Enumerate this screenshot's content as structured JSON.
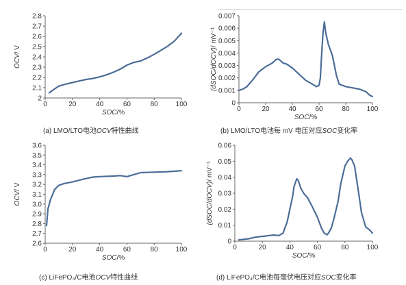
{
  "chart_data": [
    {
      "type": "line",
      "caption": {
        "prefix": "(a) LMO/LTO电池",
        "italic": "OCV",
        "suffix": "特性曲线"
      },
      "ylabel": {
        "italic": "OCV",
        "suffix": "/ V"
      },
      "xlabel": {
        "italic": "SOC",
        "suffix": "/%"
      },
      "xlim": [
        0,
        100
      ],
      "ylim": [
        2,
        2.8
      ],
      "x_ticks": [
        "0",
        "20",
        "40",
        "60",
        "80",
        "100"
      ],
      "y_ticks": [
        "2",
        "2.1",
        "2.2",
        "2.3",
        "2.4",
        "2.5",
        "2.6",
        "2.7",
        "2.8"
      ],
      "grid": false,
      "color": "#4a6d96",
      "x": [
        3,
        6,
        10,
        15,
        20,
        25,
        30,
        35,
        40,
        45,
        50,
        55,
        60,
        65,
        70,
        75,
        80,
        85,
        90,
        95,
        98,
        100
      ],
      "y": [
        2.05,
        2.08,
        2.115,
        2.135,
        2.15,
        2.165,
        2.18,
        2.19,
        2.205,
        2.225,
        2.25,
        2.28,
        2.32,
        2.345,
        2.36,
        2.39,
        2.425,
        2.465,
        2.505,
        2.555,
        2.6,
        2.63
      ]
    },
    {
      "type": "line",
      "caption": {
        "prefix": "(b) LMO/LTO电池每 mV 电压对应",
        "italic": "SOC",
        "suffix": "变化率"
      },
      "ylabel": {
        "italic": "(dSOC/dOCV)",
        "suffix": "/ mV⁻¹"
      },
      "xlabel": {
        "italic": "SOC",
        "suffix": "/%"
      },
      "xlim": [
        0,
        100
      ],
      "ylim": [
        0,
        0.007
      ],
      "x_ticks": [
        "0",
        "20",
        "40",
        "60",
        "80",
        "100"
      ],
      "y_ticks": [
        "0",
        "0.001",
        "0.002",
        "0.003",
        "0.004",
        "0.005",
        "0.006",
        "0.007"
      ],
      "grid": false,
      "color": "#4a6d96",
      "x": [
        0,
        3,
        6,
        10,
        15,
        20,
        25,
        28,
        30,
        33,
        36,
        40,
        45,
        50,
        55,
        58,
        60,
        61,
        62,
        63,
        64,
        65,
        67,
        70,
        73,
        75,
        80,
        85,
        90,
        95,
        98,
        100
      ],
      "y": [
        0.001,
        0.0011,
        0.0013,
        0.0018,
        0.0025,
        0.0029,
        0.0032,
        0.0035,
        0.0035,
        0.0032,
        0.0031,
        0.0028,
        0.0023,
        0.0018,
        0.0015,
        0.0013,
        0.0014,
        0.002,
        0.004,
        0.0057,
        0.0065,
        0.0056,
        0.0047,
        0.0038,
        0.0022,
        0.0015,
        0.0013,
        0.0012,
        0.0011,
        0.0009,
        0.0006,
        0.0005
      ]
    },
    {
      "type": "line",
      "caption": {
        "prefix": "(c) LiFePO₄/C电池",
        "italic": "OCV",
        "suffix": "特性曲线"
      },
      "ylabel": {
        "italic": "OCV",
        "suffix": "/ V"
      },
      "xlabel": {
        "italic": "SOC",
        "suffix": "/%"
      },
      "xlim": [
        0,
        100
      ],
      "ylim": [
        2.6,
        3.6
      ],
      "x_ticks": [
        "0",
        "20",
        "40",
        "60",
        "80",
        "100"
      ],
      "y_ticks": [
        "2.6",
        "2.7",
        "2.8",
        "2.9",
        "3.0",
        "3.1",
        "3.2",
        "3.3",
        "3.4",
        "3.5",
        "3.6"
      ],
      "grid": false,
      "color": "#4a6d96",
      "x": [
        1,
        2,
        4,
        7,
        10,
        14,
        20,
        30,
        35,
        40,
        50,
        55,
        60,
        65,
        70,
        80,
        90,
        100
      ],
      "y": [
        2.78,
        2.95,
        3.05,
        3.15,
        3.19,
        3.21,
        3.225,
        3.26,
        3.275,
        3.28,
        3.285,
        3.29,
        3.28,
        3.3,
        3.32,
        3.325,
        3.33,
        3.34
      ]
    },
    {
      "type": "line",
      "caption": {
        "prefix": "(d) LiFePO₄/C电池每毫伏电压对应",
        "italic": "SOC",
        "suffix": "变化率"
      },
      "ylabel": {
        "italic": "(dSOC/dOCV)",
        "suffix": "/ mV⁻¹"
      },
      "xlabel": {
        "italic": "SOC",
        "suffix": "/%"
      },
      "xlim": [
        0,
        100
      ],
      "ylim": [
        0,
        0.06
      ],
      "x_ticks": [
        "0",
        "20",
        "40",
        "60",
        "80",
        "100"
      ],
      "y_ticks": [
        "0",
        "0.01",
        "0.02",
        "0.03",
        "0.04",
        "0.05",
        "0.06"
      ],
      "grid": false,
      "color": "#4a6d96",
      "x": [
        3,
        5,
        10,
        15,
        20,
        25,
        28,
        32,
        35,
        38,
        40,
        42,
        43,
        45,
        46,
        48,
        50,
        53,
        56,
        60,
        63,
        65,
        67,
        68,
        70,
        72,
        75,
        77,
        80,
        82,
        84,
        85,
        87,
        90,
        92,
        95,
        98,
        100
      ],
      "y": [
        0.0008,
        0.001,
        0.0015,
        0.0025,
        0.003,
        0.0035,
        0.0038,
        0.0035,
        0.005,
        0.012,
        0.02,
        0.028,
        0.034,
        0.039,
        0.038,
        0.033,
        0.03,
        0.027,
        0.022,
        0.015,
        0.008,
        0.005,
        0.004,
        0.005,
        0.008,
        0.014,
        0.025,
        0.036,
        0.047,
        0.05,
        0.052,
        0.051,
        0.047,
        0.03,
        0.018,
        0.009,
        0.007,
        0.005
      ]
    }
  ]
}
